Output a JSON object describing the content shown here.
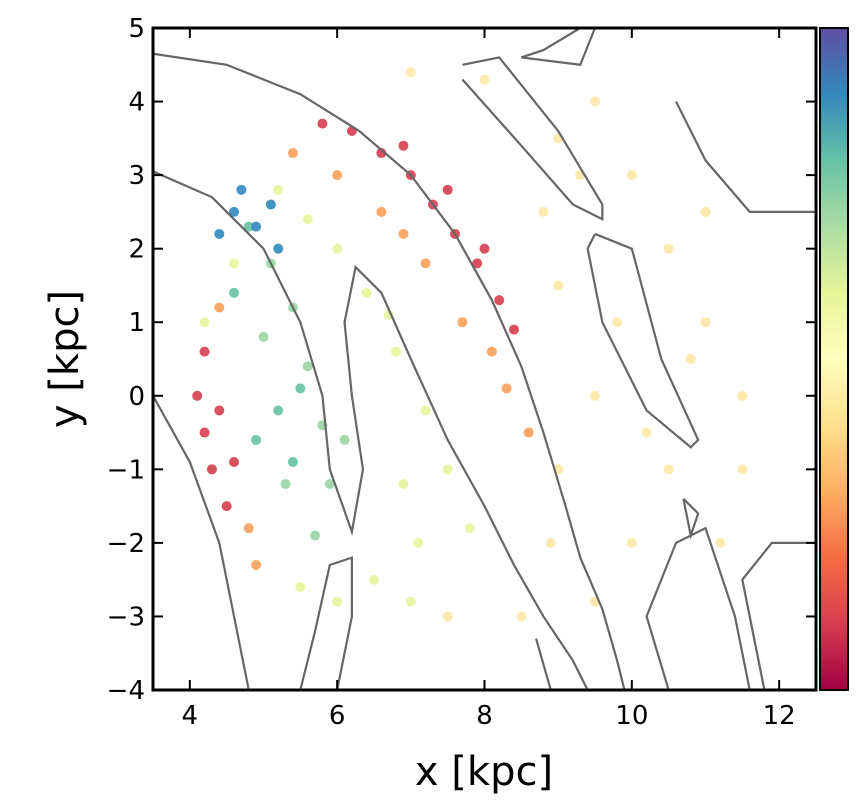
{
  "chart_data": {
    "type": "scatter",
    "xlabel": "x [kpc]",
    "ylabel": "y [kpc]",
    "xlim": [
      3.5,
      12.5
    ],
    "xticks": [
      4,
      6,
      8,
      10,
      12
    ],
    "ylim": [
      -4,
      5
    ],
    "yticks": [
      {
        "value": -4,
        "label": "−4"
      },
      {
        "value": -3,
        "label": "−3"
      },
      {
        "value": -2,
        "label": "−2"
      },
      {
        "value": -1,
        "label": "−1"
      },
      0,
      1,
      2,
      3,
      4,
      5
    ],
    "series": [
      {
        "color": "#fee8a6",
        "x": [
          9,
          10,
          10.5,
          11,
          11.5,
          10.5,
          10,
          9.5,
          8.5,
          7.5,
          9,
          9.5,
          9,
          8,
          7,
          9.5,
          11,
          11.5,
          10.8,
          8.8,
          9.8,
          10.2,
          11.2,
          8.9,
          9.3
        ],
        "y": [
          3.5,
          3,
          2,
          1,
          0,
          -1,
          -2,
          -2.8,
          -3,
          -3,
          1.5,
          0,
          -1,
          4.3,
          4.4,
          4,
          2.5,
          -1,
          0.5,
          2.5,
          1,
          -0.5,
          -2,
          -2,
          3
        ]
      },
      {
        "color": "#e6f59d",
        "x": [
          5.2,
          5.6,
          6,
          6.4,
          6.8,
          7.2,
          7.5,
          7.8,
          6.5,
          6,
          7,
          5.5,
          4.6,
          4.2,
          6.9,
          7.1,
          6.7
        ],
        "y": [
          2.8,
          2.4,
          2,
          1.4,
          0.6,
          -0.2,
          -1,
          -1.8,
          -2.5,
          -2.8,
          -2.8,
          -2.6,
          1.8,
          1,
          -1.2,
          -2,
          1.1
        ]
      },
      {
        "color": "#99d5a4",
        "x": [
          5.1,
          5.4,
          5.6,
          5.8,
          5.9,
          5.7,
          5,
          5.3,
          6.1
        ],
        "y": [
          1.8,
          1.2,
          0.4,
          -0.4,
          -1.2,
          -1.9,
          0.8,
          -1.2,
          -0.6
        ]
      },
      {
        "color": "#66c2a5",
        "x": [
          4.8,
          5.2,
          4.9,
          4.6,
          5.4,
          5.5
        ],
        "y": [
          2.3,
          -0.2,
          -0.6,
          1.4,
          -0.9,
          0.1
        ]
      },
      {
        "color": "#3288bd",
        "x": [
          4.6,
          4.9,
          5.2,
          4.7,
          5.1,
          4.4
        ],
        "y": [
          2.5,
          2.3,
          2,
          2.8,
          2.6,
          2.2
        ]
      },
      {
        "color": "#f8a05a",
        "x": [
          5.4,
          6,
          6.6,
          7.2,
          7.7,
          8.3,
          8.6,
          4.8,
          4.9,
          4.4,
          8.1,
          6.9
        ],
        "y": [
          3.3,
          3,
          2.5,
          1.8,
          1,
          0.1,
          -0.5,
          -1.8,
          -2.3,
          1.2,
          0.6,
          2.2
        ]
      },
      {
        "color": "#d53e4f",
        "x": [
          5.8,
          6.2,
          6.6,
          7,
          7.3,
          7.6,
          7.9,
          8.2,
          8.4,
          6.9,
          7.5,
          8,
          4.1,
          4.2,
          4.3,
          4.5,
          4.2,
          4.4,
          4.6
        ],
        "y": [
          3.7,
          3.6,
          3.3,
          3,
          2.6,
          2.2,
          1.8,
          1.3,
          0.9,
          3.4,
          2.8,
          2,
          0,
          -0.5,
          -1,
          -1.5,
          0.6,
          -0.2,
          -0.9
        ]
      }
    ],
    "contour_color": "#666666",
    "contours": [
      {
        "x": [
          3.5,
          4.5,
          5.5,
          6.3,
          7,
          7.6,
          8.1,
          8.5,
          8.8,
          9.1,
          9.3,
          9.6,
          9.8,
          9.9
        ],
        "y": [
          4.65,
          4.5,
          4.1,
          3.6,
          3,
          2.2,
          1.3,
          0.4,
          -0.5,
          -1.5,
          -2.2,
          -2.9,
          -3.6,
          -4
        ]
      },
      {
        "x": [
          3.5,
          4.3,
          5,
          5.5,
          5.8,
          5.9,
          6.2,
          6.35,
          6.2,
          6.1,
          6.25,
          6.6,
          7,
          7.5,
          8,
          8.4,
          8.8,
          9.2,
          9.4
        ],
        "y": [
          3.05,
          2.7,
          2,
          1,
          0,
          -1,
          -1.85,
          -1,
          0,
          1,
          1.75,
          1.4,
          0.5,
          -0.6,
          -1.5,
          -2.3,
          -3,
          -3.6,
          -4
        ]
      },
      {
        "x": [
          3.5,
          4,
          4.4,
          4.6,
          4.8
        ],
        "y": [
          0,
          -0.9,
          -2,
          -3,
          -4
        ]
      },
      {
        "x": [
          5.5,
          5.7,
          5.9,
          6.2,
          6.2,
          6
        ],
        "y": [
          -4,
          -3.2,
          -2.3,
          -2.2,
          -3,
          -4
        ]
      },
      {
        "x": [
          7.7,
          8.2,
          9,
          9.6,
          9.6,
          9.2,
          8.5,
          7.7
        ],
        "y": [
          4.5,
          4.6,
          3.6,
          2.6,
          2.4,
          2.6,
          3.4,
          4.3
        ]
      },
      {
        "x": [
          9.5,
          10,
          10.4,
          10.9,
          10.8,
          10.2,
          9.6,
          9.4,
          9.5
        ],
        "y": [
          2.2,
          2,
          0.5,
          -0.6,
          -0.7,
          -0.2,
          1,
          2,
          2.2
        ]
      },
      {
        "x": [
          9.3,
          8.8,
          8.5,
          9.3,
          9.5
        ],
        "y": [
          5,
          4.7,
          4.6,
          4.5,
          5
        ]
      },
      {
        "x": [
          10.6,
          11,
          11.6,
          12.5
        ],
        "y": [
          4,
          3.2,
          2.5,
          2.5
        ]
      },
      {
        "x": [
          10.5,
          10.2,
          10.6,
          11,
          11.4,
          11.6
        ],
        "y": [
          -4,
          -3,
          -2,
          -1.8,
          -3,
          -4
        ]
      },
      {
        "x": [
          11.8,
          11.5,
          11.9,
          12.5
        ],
        "y": [
          -4,
          -2.5,
          -2,
          -2
        ]
      },
      {
        "x": [
          10.7,
          10.9,
          10.8,
          10.7
        ],
        "y": [
          -1.4,
          -1.6,
          -1.9,
          -1.4
        ]
      },
      {
        "x": [
          8.9,
          8.7,
          8.9
        ],
        "y": [
          -4,
          -3.3,
          -4
        ]
      }
    ],
    "colorbar_colors": [
      "#9e0142",
      "#d53e4f",
      "#f46d43",
      "#fdae61",
      "#fee08b",
      "#ffffbf",
      "#e6f598",
      "#abdda4",
      "#66c2a5",
      "#3288bd",
      "#5e4fa2"
    ]
  }
}
